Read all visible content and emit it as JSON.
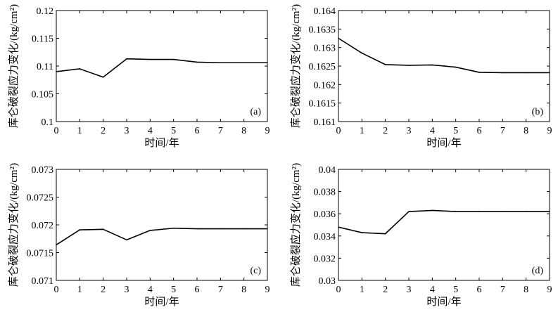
{
  "chart_data": [
    {
      "type": "line",
      "panel_label": "(a)",
      "x": [
        0,
        1,
        2,
        3,
        4,
        5,
        6,
        7,
        8,
        9
      ],
      "series": [
        {
          "values": [
            0.109,
            0.1095,
            0.108,
            0.1113,
            0.1112,
            0.1112,
            0.1107,
            0.1106,
            0.1106,
            0.1106
          ]
        }
      ],
      "xlabel": "时间/年",
      "ylabel": "库仑破裂应力变化/(kg/cm²)",
      "xlim": [
        0,
        9
      ],
      "ylim": [
        0.1,
        0.12
      ],
      "xticks": [
        "0",
        "1",
        "2",
        "3",
        "4",
        "5",
        "6",
        "7",
        "8",
        "9"
      ],
      "yticks": [
        "0.1",
        "0.105",
        "0.11",
        "0.115",
        "0.12"
      ],
      "grid": false
    },
    {
      "type": "line",
      "panel_label": "(b)",
      "x": [
        0,
        1,
        2,
        3,
        4,
        5,
        6,
        7,
        8,
        9
      ],
      "series": [
        {
          "values": [
            0.16325,
            0.16285,
            0.16254,
            0.16252,
            0.16253,
            0.16247,
            0.16233,
            0.16232,
            0.16232,
            0.16232
          ]
        }
      ],
      "xlabel": "时间/年",
      "ylabel": "库仑破裂应力变化/(kg/cm²)",
      "xlim": [
        0,
        9
      ],
      "ylim": [
        0.161,
        0.164
      ],
      "xticks": [
        "0",
        "1",
        "2",
        "3",
        "4",
        "5",
        "6",
        "7",
        "8",
        "9"
      ],
      "yticks": [
        "0.161",
        "0.1615",
        "0.162",
        "0.1625",
        "0.163",
        "0.1635",
        "0.164"
      ],
      "grid": false
    },
    {
      "type": "line",
      "panel_label": "(c)",
      "x": [
        0,
        1,
        2,
        3,
        4,
        5,
        6,
        7,
        8,
        9
      ],
      "series": [
        {
          "values": [
            0.07164,
            0.07191,
            0.07192,
            0.07173,
            0.0719,
            0.07194,
            0.07193,
            0.07193,
            0.07193,
            0.07193
          ]
        }
      ],
      "xlabel": "时间/年",
      "ylabel": "库仑破裂应力变化/(kg/cm²)",
      "xlim": [
        0,
        9
      ],
      "ylim": [
        0.071,
        0.073
      ],
      "xticks": [
        "0",
        "1",
        "2",
        "3",
        "4",
        "5",
        "6",
        "7",
        "8",
        "9"
      ],
      "yticks": [
        "0.071",
        "0.0715",
        "0.072",
        "0.0725",
        "0.073"
      ],
      "grid": false
    },
    {
      "type": "line",
      "panel_label": "(d)",
      "x": [
        0,
        1,
        2,
        3,
        4,
        5,
        6,
        7,
        8,
        9
      ],
      "series": [
        {
          "values": [
            0.0348,
            0.0343,
            0.0342,
            0.0362,
            0.0363,
            0.0362,
            0.0362,
            0.0362,
            0.0362,
            0.0362
          ]
        }
      ],
      "xlabel": "时间/年",
      "ylabel": "库仑破裂应力变化/(kg/cm²)",
      "xlim": [
        0,
        9
      ],
      "ylim": [
        0.03,
        0.04
      ],
      "xticks": [
        "0",
        "1",
        "2",
        "3",
        "4",
        "5",
        "6",
        "7",
        "8",
        "9"
      ],
      "yticks": [
        "0.03",
        "0.032",
        "0.034",
        "0.036",
        "0.038",
        "0.04"
      ],
      "grid": false
    }
  ]
}
